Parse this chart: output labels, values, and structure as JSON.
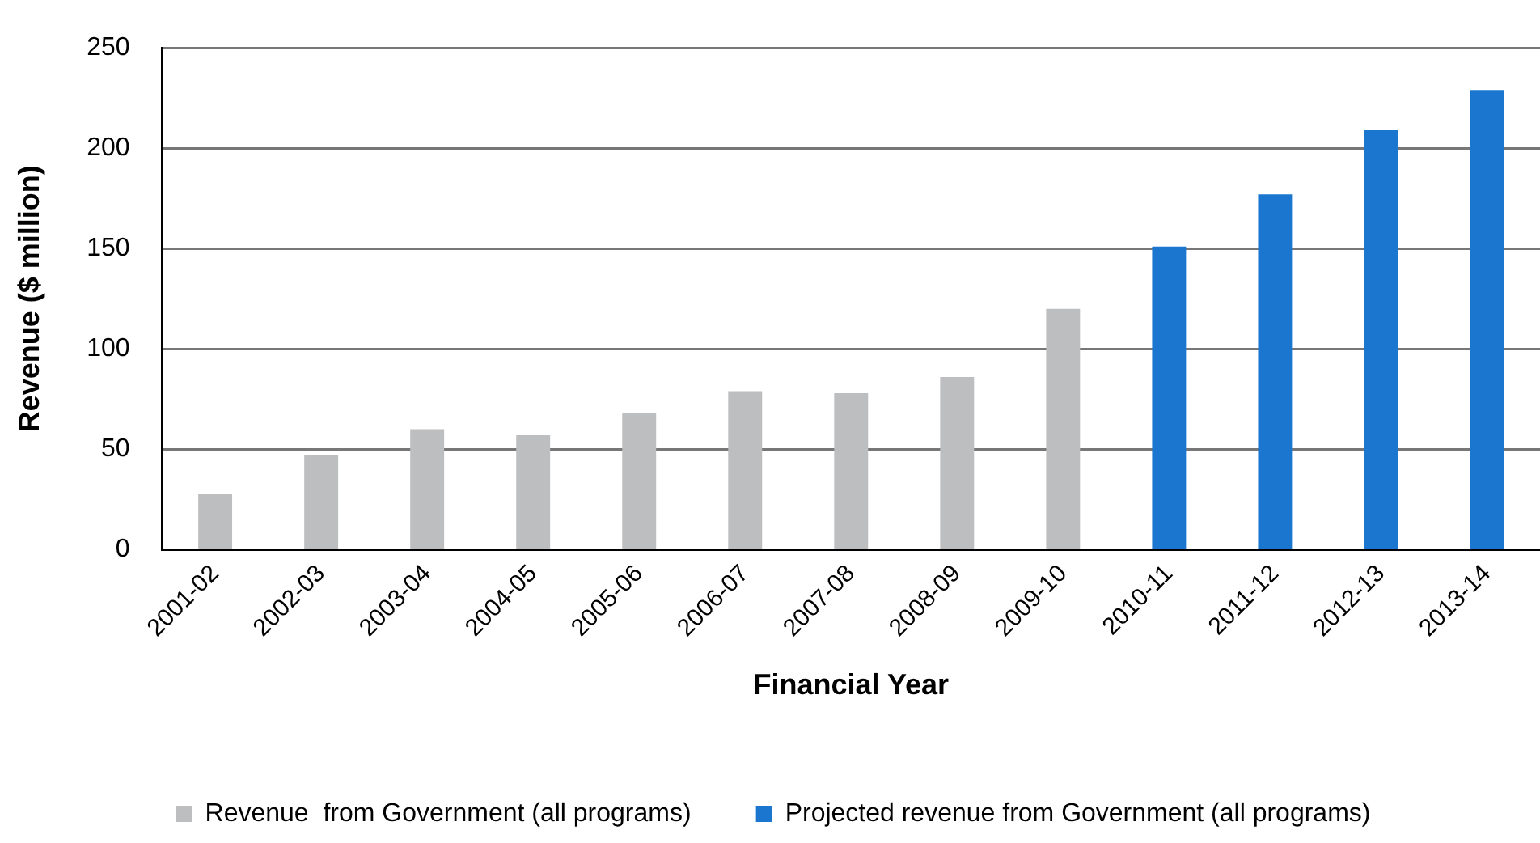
{
  "chart_data": {
    "type": "bar",
    "xlabel": "Financial Year",
    "ylabel": "Revenue ($ million)",
    "categories": [
      "2001-02",
      "2002-03",
      "2003-04",
      "2004-05",
      "2005-06",
      "2006-07",
      "2007-08",
      "2008-09",
      "2009-10",
      "2010-11",
      "2011-12",
      "2012-13",
      "2013-14"
    ],
    "series": [
      {
        "name": "Revenue  from Government (all programs)",
        "color": "#bdbec0",
        "values": [
          28,
          47,
          60,
          57,
          68,
          79,
          78,
          86,
          120,
          null,
          null,
          null,
          null
        ]
      },
      {
        "name": "Projected revenue from Government (all programs)",
        "color": "#1b76cf",
        "values": [
          null,
          null,
          null,
          null,
          null,
          null,
          null,
          null,
          null,
          151,
          177,
          209,
          229
        ]
      }
    ],
    "ylim": [
      0,
      250
    ],
    "yticks": [
      0,
      50,
      100,
      150,
      200,
      250
    ],
    "grid": "y",
    "legend": "bottom"
  }
}
